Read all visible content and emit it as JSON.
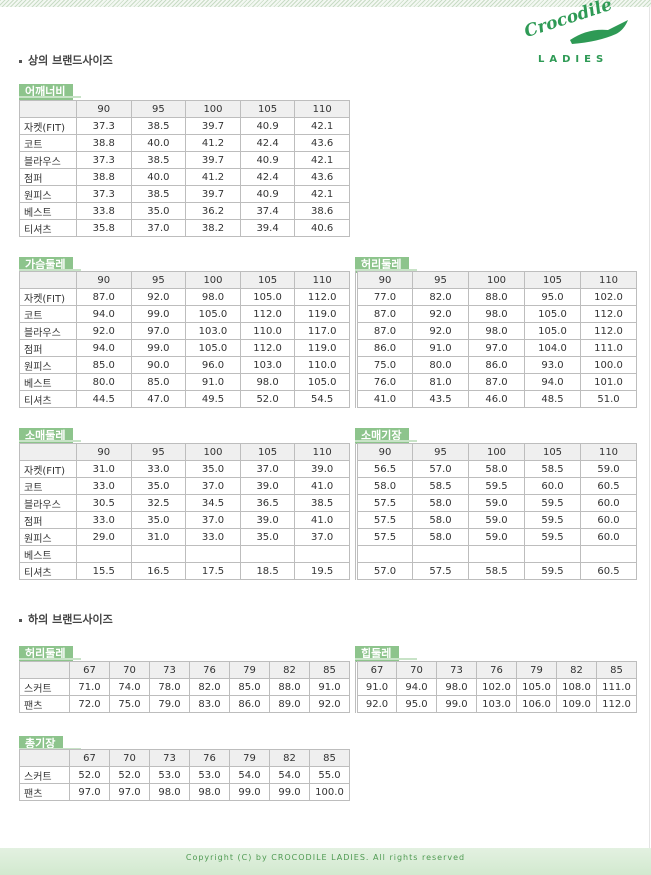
{
  "header": {
    "logo": "Crocodile",
    "logo_sub": "LADIES"
  },
  "sections": [
    {
      "title": "상의 브랜드사이즈",
      "tables": [
        {
          "title": "어깨너비",
          "columns": [
            "90",
            "95",
            "100",
            "105",
            "110"
          ],
          "rows": [
            {
              "label": "자켓(FIT)",
              "cells": [
                "37.3",
                "38.5",
                "39.7",
                "40.9",
                "42.1"
              ]
            },
            {
              "label": "코트",
              "cells": [
                "38.8",
                "40.0",
                "41.2",
                "42.4",
                "43.6"
              ]
            },
            {
              "label": "블라우스",
              "cells": [
                "37.3",
                "38.5",
                "39.7",
                "40.9",
                "42.1"
              ]
            },
            {
              "label": "점퍼",
              "cells": [
                "38.8",
                "40.0",
                "41.2",
                "42.4",
                "43.6"
              ]
            },
            {
              "label": "원피스",
              "cells": [
                "37.3",
                "38.5",
                "39.7",
                "40.9",
                "42.1"
              ]
            },
            {
              "label": "베스트",
              "cells": [
                "33.8",
                "35.0",
                "36.2",
                "37.4",
                "38.6"
              ]
            },
            {
              "label": "티셔츠",
              "cells": [
                "35.8",
                "37.0",
                "38.2",
                "39.4",
                "40.6"
              ]
            }
          ]
        },
        {
          "title": "가슴둘레",
          "columns": [
            "90",
            "95",
            "100",
            "105",
            "110"
          ],
          "rows": [
            {
              "label": "자켓(FIT)",
              "cells": [
                "87.0",
                "92.0",
                "98.0",
                "105.0",
                "112.0"
              ]
            },
            {
              "label": "코트",
              "cells": [
                "94.0",
                "99.0",
                "105.0",
                "112.0",
                "119.0"
              ]
            },
            {
              "label": "블라우스",
              "cells": [
                "92.0",
                "97.0",
                "103.0",
                "110.0",
                "117.0"
              ]
            },
            {
              "label": "점퍼",
              "cells": [
                "94.0",
                "99.0",
                "105.0",
                "112.0",
                "119.0"
              ]
            },
            {
              "label": "원피스",
              "cells": [
                "85.0",
                "90.0",
                "96.0",
                "103.0",
                "110.0"
              ]
            },
            {
              "label": "베스트",
              "cells": [
                "80.0",
                "85.0",
                "91.0",
                "98.0",
                "105.0"
              ]
            },
            {
              "label": "티셔츠",
              "cells": [
                "44.5",
                "47.0",
                "49.5",
                "52.0",
                "54.5"
              ]
            }
          ]
        },
        {
          "title": "허리둘레",
          "columns": [
            "90",
            "95",
            "100",
            "105",
            "110"
          ],
          "rows": [
            {
              "cells": [
                "77.0",
                "82.0",
                "88.0",
                "95.0",
                "102.0"
              ]
            },
            {
              "cells": [
                "87.0",
                "92.0",
                "98.0",
                "105.0",
                "112.0"
              ]
            },
            {
              "cells": [
                "87.0",
                "92.0",
                "98.0",
                "105.0",
                "112.0"
              ]
            },
            {
              "cells": [
                "86.0",
                "91.0",
                "97.0",
                "104.0",
                "111.0"
              ]
            },
            {
              "cells": [
                "75.0",
                "80.0",
                "86.0",
                "93.0",
                "100.0"
              ]
            },
            {
              "cells": [
                "76.0",
                "81.0",
                "87.0",
                "94.0",
                "101.0"
              ]
            },
            {
              "cells": [
                "41.0",
                "43.5",
                "46.0",
                "48.5",
                "51.0"
              ]
            }
          ]
        },
        {
          "title": "소매둘레",
          "columns": [
            "90",
            "95",
            "100",
            "105",
            "110"
          ],
          "rows": [
            {
              "label": "자켓(FIT)",
              "cells": [
                "31.0",
                "33.0",
                "35.0",
                "37.0",
                "39.0"
              ]
            },
            {
              "label": "코트",
              "cells": [
                "33.0",
                "35.0",
                "37.0",
                "39.0",
                "41.0"
              ]
            },
            {
              "label": "블라우스",
              "cells": [
                "30.5",
                "32.5",
                "34.5",
                "36.5",
                "38.5"
              ]
            },
            {
              "label": "점퍼",
              "cells": [
                "33.0",
                "35.0",
                "37.0",
                "39.0",
                "41.0"
              ]
            },
            {
              "label": "원피스",
              "cells": [
                "29.0",
                "31.0",
                "33.0",
                "35.0",
                "37.0"
              ]
            },
            {
              "label": "베스트",
              "cells": [
                null,
                null,
                null,
                null,
                null
              ]
            },
            {
              "label": "티셔츠",
              "cells": [
                "15.5",
                "16.5",
                "17.5",
                "18.5",
                "19.5"
              ]
            }
          ]
        },
        {
          "title": "소매기장",
          "columns": [
            "90",
            "95",
            "100",
            "105",
            "110"
          ],
          "rows": [
            {
              "cells": [
                "56.5",
                "57.0",
                "58.0",
                "58.5",
                "59.0"
              ]
            },
            {
              "cells": [
                "58.0",
                "58.5",
                "59.5",
                "60.0",
                "60.5"
              ]
            },
            {
              "cells": [
                "57.5",
                "58.0",
                "59.0",
                "59.5",
                "60.0"
              ]
            },
            {
              "cells": [
                "57.5",
                "58.0",
                "59.0",
                "59.5",
                "60.0"
              ]
            },
            {
              "cells": [
                "57.5",
                "58.0",
                "59.0",
                "59.5",
                "60.0"
              ]
            },
            {
              "cells": [
                null,
                null,
                null,
                null,
                null
              ]
            },
            {
              "cells": [
                "57.0",
                "57.5",
                "58.5",
                "59.5",
                "60.5"
              ]
            }
          ]
        }
      ]
    },
    {
      "title": "하의 브랜드사이즈",
      "tables": [
        {
          "title": "허리둘레",
          "columns": [
            "67",
            "70",
            "73",
            "76",
            "79",
            "82",
            "85"
          ],
          "rows": [
            {
              "label": "스커트",
              "cells": [
                "71.0",
                "74.0",
                "78.0",
                "82.0",
                "85.0",
                "88.0",
                "91.0"
              ]
            },
            {
              "label": "팬츠",
              "cells": [
                "72.0",
                "75.0",
                "79.0",
                "83.0",
                "86.0",
                "89.0",
                "92.0"
              ]
            }
          ]
        },
        {
          "title": "힙둘레",
          "columns": [
            "67",
            "70",
            "73",
            "76",
            "79",
            "82",
            "85"
          ],
          "rows": [
            {
              "cells": [
                "91.0",
                "94.0",
                "98.0",
                "102.0",
                "105.0",
                "108.0",
                "111.0"
              ]
            },
            {
              "cells": [
                "92.0",
                "95.0",
                "99.0",
                "103.0",
                "106.0",
                "109.0",
                "112.0"
              ]
            }
          ]
        },
        {
          "title": "총기장",
          "columns": [
            "67",
            "70",
            "73",
            "76",
            "79",
            "82",
            "85"
          ],
          "rows": [
            {
              "label": "스커트",
              "cells": [
                "52.0",
                "52.0",
                "53.0",
                "53.0",
                "54.0",
                "54.0",
                "55.0"
              ]
            },
            {
              "label": "팬츠",
              "cells": [
                "97.0",
                "97.0",
                "98.0",
                "98.0",
                "99.0",
                "99.0",
                "100.0"
              ]
            }
          ]
        }
      ]
    }
  ],
  "footer": "Copyright (C) by CROCODILE LADIES. All rights reserved"
}
